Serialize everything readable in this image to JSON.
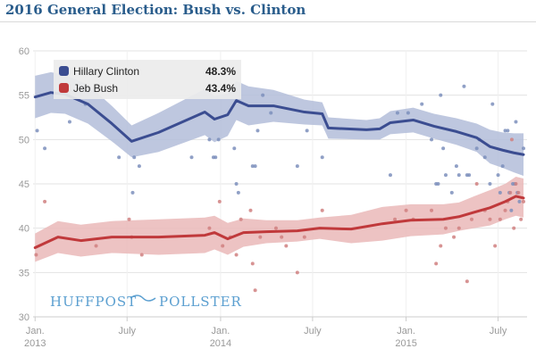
{
  "page": {
    "title": "2016 General Election: Bush vs. Clinton"
  },
  "branding": {
    "left": "HUFFPOST",
    "right": "POLLSTER"
  },
  "colors": {
    "clinton": "#3b4d91",
    "clinton_band": "#b3bdd9",
    "clinton_dot": "#7d8fbc",
    "bush": "#c0393b",
    "bush_band": "#eab9b9",
    "bush_dot": "#d08080",
    "grid": "#e3e3e3",
    "legend_bg": "#ebebeb",
    "brand": "#5b9fd0"
  },
  "chart_data": {
    "type": "line",
    "title": "2016 General Election: Bush vs. Clinton",
    "xlabel": "",
    "ylabel": "",
    "ylim": [
      30,
      60
    ],
    "yticks": [
      30,
      35,
      40,
      45,
      50,
      55,
      60
    ],
    "xlim": [
      "2012-12-28",
      "2015-08-27"
    ],
    "xticks": [
      {
        "date": "2013-01-01",
        "line1": "Jan.",
        "line2": "2013"
      },
      {
        "date": "2013-07-01",
        "line1": "July",
        "line2": ""
      },
      {
        "date": "2014-01-01",
        "line1": "Jan.",
        "line2": "2014"
      },
      {
        "date": "2014-07-01",
        "line1": "July",
        "line2": ""
      },
      {
        "date": "2015-01-01",
        "line1": "Jan.",
        "line2": "2015"
      },
      {
        "date": "2015-07-01",
        "line1": "July",
        "line2": ""
      }
    ],
    "grid": true,
    "legend_position": "top-left",
    "series": [
      {
        "name": "Hillary Clinton",
        "value_label": "48.3%",
        "color": "#3b4d91",
        "trend": [
          [
            "2013-01-01",
            54.8
          ],
          [
            "2013-02-01",
            55.3
          ],
          [
            "2013-03-01",
            55.1
          ],
          [
            "2013-04-15",
            54.0
          ],
          [
            "2013-06-01",
            51.8
          ],
          [
            "2013-07-10",
            49.8
          ],
          [
            "2013-09-01",
            50.8
          ],
          [
            "2013-12-01",
            53.1
          ],
          [
            "2013-12-20",
            52.3
          ],
          [
            "2014-01-15",
            52.8
          ],
          [
            "2014-02-01",
            54.4
          ],
          [
            "2014-02-25",
            53.8
          ],
          [
            "2014-04-15",
            53.8
          ],
          [
            "2014-06-15",
            53.1
          ],
          [
            "2014-07-20",
            52.9
          ],
          [
            "2014-08-01",
            51.3
          ],
          [
            "2014-10-15",
            51.1
          ],
          [
            "2014-11-10",
            51.2
          ],
          [
            "2014-12-01",
            51.9
          ],
          [
            "2015-01-15",
            52.2
          ],
          [
            "2015-02-25",
            51.5
          ],
          [
            "2015-04-10",
            50.9
          ],
          [
            "2015-05-20",
            50.2
          ],
          [
            "2015-06-15",
            49.2
          ],
          [
            "2015-07-10",
            48.8
          ],
          [
            "2015-08-01",
            48.5
          ],
          [
            "2015-08-20",
            48.3
          ]
        ],
        "band_width": [
          2.4,
          2.3,
          2.2,
          2.2,
          2.0,
          1.8,
          2.2,
          2.6,
          2.6,
          2.4,
          2.2,
          2.2,
          1.8,
          1.4,
          1.3,
          1.2,
          1.1,
          1.2,
          1.3,
          1.4,
          1.4,
          1.5,
          1.6,
          1.9,
          2.0,
          2.2,
          2.4
        ],
        "polls": [
          [
            "2013-01-05",
            51
          ],
          [
            "2013-01-20",
            49
          ],
          [
            "2013-03-10",
            52
          ],
          [
            "2013-04-10",
            54
          ],
          [
            "2013-06-15",
            48
          ],
          [
            "2013-07-12",
            44
          ],
          [
            "2013-07-15",
            48
          ],
          [
            "2013-07-25",
            47
          ],
          [
            "2013-11-05",
            48
          ],
          [
            "2013-12-10",
            50
          ],
          [
            "2013-12-18",
            48
          ],
          [
            "2013-12-22",
            48
          ],
          [
            "2013-12-28",
            50
          ],
          [
            "2014-01-28",
            49
          ],
          [
            "2014-02-01",
            45
          ],
          [
            "2014-02-05",
            44
          ],
          [
            "2014-03-05",
            47
          ],
          [
            "2014-03-10",
            47
          ],
          [
            "2014-03-15",
            51
          ],
          [
            "2014-03-25",
            55
          ],
          [
            "2014-04-10",
            53
          ],
          [
            "2014-06-01",
            47
          ],
          [
            "2014-06-20",
            51
          ],
          [
            "2014-07-20",
            48
          ],
          [
            "2014-12-01",
            46
          ],
          [
            "2014-12-15",
            53
          ],
          [
            "2015-01-05",
            53
          ],
          [
            "2015-02-01",
            54
          ],
          [
            "2015-02-20",
            50
          ],
          [
            "2015-03-01",
            45
          ],
          [
            "2015-03-05",
            45
          ],
          [
            "2015-03-15",
            49
          ],
          [
            "2015-03-20",
            46
          ],
          [
            "2015-03-10",
            55
          ],
          [
            "2015-04-01",
            44
          ],
          [
            "2015-04-10",
            47
          ],
          [
            "2015-04-15",
            46
          ],
          [
            "2015-04-25",
            56
          ],
          [
            "2015-05-01",
            46
          ],
          [
            "2015-05-05",
            46
          ],
          [
            "2015-05-20",
            49
          ],
          [
            "2015-05-25",
            50
          ],
          [
            "2015-06-05",
            48
          ],
          [
            "2015-06-15",
            45
          ],
          [
            "2015-06-20",
            54
          ],
          [
            "2015-07-01",
            46
          ],
          [
            "2015-07-05",
            44
          ],
          [
            "2015-07-10",
            47
          ],
          [
            "2015-07-15",
            51
          ],
          [
            "2015-07-20",
            51
          ],
          [
            "2015-07-23",
            44
          ],
          [
            "2015-07-27",
            42
          ],
          [
            "2015-07-30",
            45
          ],
          [
            "2015-08-03",
            45
          ],
          [
            "2015-08-05",
            52
          ],
          [
            "2015-08-08",
            44
          ],
          [
            "2015-08-12",
            43
          ],
          [
            "2015-08-20",
            49
          ]
        ]
      },
      {
        "name": "Jeb Bush",
        "value_label": "43.4%",
        "color": "#c0393b",
        "trend": [
          [
            "2013-01-01",
            37.8
          ],
          [
            "2013-02-15",
            39.0
          ],
          [
            "2013-04-01",
            38.6
          ],
          [
            "2013-06-01",
            39.0
          ],
          [
            "2013-09-01",
            39.0
          ],
          [
            "2013-12-01",
            39.2
          ],
          [
            "2013-12-20",
            39.5
          ],
          [
            "2014-01-15",
            38.8
          ],
          [
            "2014-02-15",
            39.5
          ],
          [
            "2014-04-01",
            39.6
          ],
          [
            "2014-06-01",
            39.7
          ],
          [
            "2014-07-15",
            40.0
          ],
          [
            "2014-09-15",
            39.9
          ],
          [
            "2014-11-15",
            40.5
          ],
          [
            "2015-01-10",
            40.9
          ],
          [
            "2015-03-15",
            41.0
          ],
          [
            "2015-04-15",
            41.3
          ],
          [
            "2015-05-15",
            41.8
          ],
          [
            "2015-06-15",
            42.3
          ],
          [
            "2015-07-15",
            43.0
          ],
          [
            "2015-08-05",
            43.6
          ],
          [
            "2015-08-20",
            43.4
          ]
        ],
        "band_width": [
          1.6,
          1.8,
          1.8,
          1.8,
          2.0,
          2.0,
          1.9,
          1.8,
          1.6,
          1.3,
          1.2,
          1.2,
          1.6,
          1.9,
          1.8,
          1.7,
          1.6,
          1.8,
          2.0,
          2.0,
          2.2,
          2.2
        ],
        "polls": [
          [
            "2013-01-03",
            37
          ],
          [
            "2013-01-20",
            43
          ],
          [
            "2013-05-01",
            38
          ],
          [
            "2013-07-05",
            41
          ],
          [
            "2013-07-10",
            39
          ],
          [
            "2013-07-30",
            37
          ],
          [
            "2013-12-10",
            40
          ],
          [
            "2013-12-30",
            43
          ],
          [
            "2014-01-05",
            38
          ],
          [
            "2014-01-20",
            39
          ],
          [
            "2014-02-01",
            37
          ],
          [
            "2014-02-10",
            41
          ],
          [
            "2014-03-01",
            42
          ],
          [
            "2014-03-05",
            36
          ],
          [
            "2014-03-10",
            33
          ],
          [
            "2014-03-20",
            39
          ],
          [
            "2014-04-20",
            40
          ],
          [
            "2014-05-01",
            39
          ],
          [
            "2014-05-10",
            38
          ],
          [
            "2014-06-01",
            35
          ],
          [
            "2014-06-15",
            39
          ],
          [
            "2014-07-20",
            42
          ],
          [
            "2014-12-10",
            41
          ],
          [
            "2015-01-01",
            42
          ],
          [
            "2015-01-15",
            41
          ],
          [
            "2015-02-20",
            42
          ],
          [
            "2015-03-01",
            36
          ],
          [
            "2015-03-10",
            38
          ],
          [
            "2015-03-20",
            40
          ],
          [
            "2015-04-05",
            39
          ],
          [
            "2015-04-15",
            40
          ],
          [
            "2015-05-01",
            34
          ],
          [
            "2015-05-10",
            41
          ],
          [
            "2015-05-20",
            45
          ],
          [
            "2015-06-05",
            42
          ],
          [
            "2015-06-15",
            41
          ],
          [
            "2015-06-25",
            38
          ],
          [
            "2015-07-05",
            41
          ],
          [
            "2015-07-15",
            42
          ],
          [
            "2015-07-20",
            43
          ],
          [
            "2015-07-25",
            44
          ],
          [
            "2015-07-28",
            50
          ],
          [
            "2015-08-01",
            40
          ],
          [
            "2015-08-05",
            45
          ],
          [
            "2015-08-10",
            44
          ],
          [
            "2015-08-15",
            41
          ],
          [
            "2015-08-20",
            43
          ]
        ]
      }
    ]
  }
}
